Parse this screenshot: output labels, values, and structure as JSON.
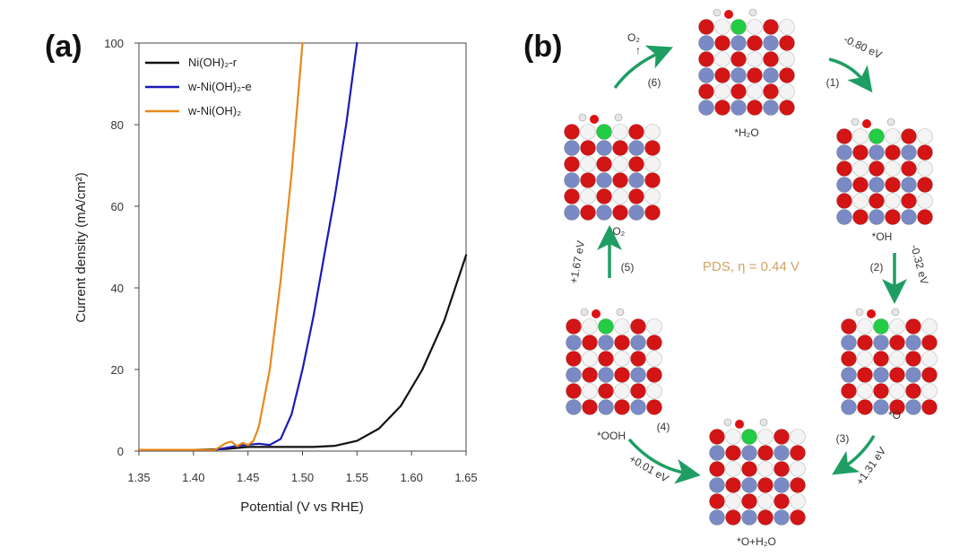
{
  "panel_a": {
    "label": "(a)"
  },
  "panel_b": {
    "label": "(b)",
    "pds": "PDS, η = 0.44 V",
    "o2": "O₂",
    "states": [
      {
        "id": "h2o",
        "label": "*H₂O"
      },
      {
        "id": "oh",
        "label": "*OH"
      },
      {
        "id": "o",
        "label": "*O"
      },
      {
        "id": "o-h2o",
        "label": "*O+H₂O"
      },
      {
        "id": "ooh",
        "label": "*OOH"
      },
      {
        "id": "o2",
        "label": "*O₂"
      }
    ],
    "steps": [
      {
        "step": "(1)",
        "energy": "-0.80 eV"
      },
      {
        "step": "(2)",
        "energy": "-0.32 eV"
      },
      {
        "step": "(3)",
        "energy": "+1.31 eV"
      },
      {
        "step": "(4)",
        "energy": "+0.01 eV"
      },
      {
        "step": "(5)",
        "energy": "+1.67 eV"
      },
      {
        "step": "(6)",
        "energy": ""
      }
    ]
  },
  "chart_data": {
    "type": "line",
    "title": "",
    "xlabel": "Potential (V vs RHE)",
    "ylabel": "Current density (mA/cm²)",
    "xlim": [
      1.35,
      1.65
    ],
    "ylim": [
      0,
      100
    ],
    "xticks": [
      "1.35",
      "1.40",
      "1.45",
      "1.50",
      "1.55",
      "1.60",
      "1.65"
    ],
    "yticks": [
      "0",
      "20",
      "40",
      "60",
      "80",
      "100"
    ],
    "legend_position": "top-left",
    "series": [
      {
        "name": "Ni(OH)₂-r",
        "color": "#111111",
        "x": [
          1.35,
          1.4,
          1.43,
          1.45,
          1.47,
          1.49,
          1.51,
          1.53,
          1.55,
          1.57,
          1.59,
          1.61,
          1.63,
          1.65
        ],
        "y": [
          0.3,
          0.3,
          0.5,
          1.0,
          1.0,
          1.0,
          1.0,
          1.3,
          2.5,
          5.5,
          11,
          20,
          32,
          48
        ]
      },
      {
        "name": "w-Ni(OH)₂-e",
        "color": "#1a1ab8",
        "x": [
          1.35,
          1.42,
          1.43,
          1.44,
          1.46,
          1.47,
          1.48,
          1.49,
          1.5,
          1.51,
          1.52,
          1.53,
          1.54,
          1.55
        ],
        "y": [
          0.3,
          0.3,
          0.8,
          1.3,
          1.8,
          1.5,
          3,
          9,
          20,
          33,
          48,
          63,
          80,
          100
        ]
      },
      {
        "name": "w-Ni(OH)₂",
        "color": "#e8891c",
        "x": [
          1.35,
          1.42,
          1.43,
          1.435,
          1.44,
          1.445,
          1.45,
          1.455,
          1.46,
          1.47,
          1.48,
          1.49,
          1.5
        ],
        "y": [
          0.3,
          0.3,
          2.0,
          2.3,
          1.2,
          2.0,
          1.5,
          2.5,
          6,
          20,
          42,
          68,
          100
        ]
      }
    ]
  }
}
